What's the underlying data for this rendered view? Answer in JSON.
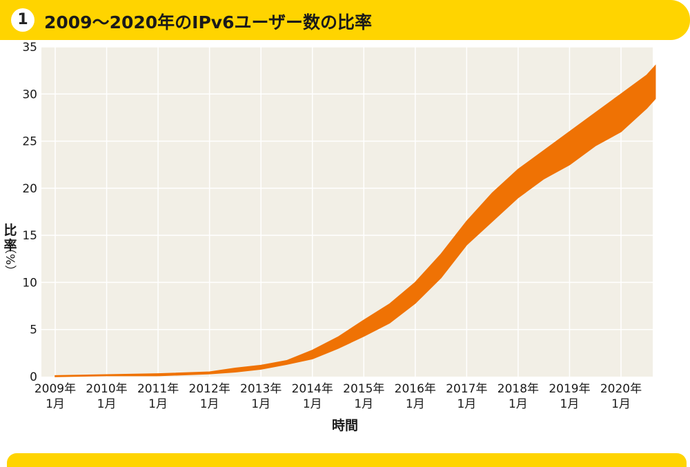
{
  "header": {
    "badge": "1",
    "title": "2009〜2020年のIPv6ユーザー数の比率"
  },
  "colors": {
    "header_bg": "#ffd400",
    "plot_bg": "#f2efe6",
    "series": "#ef7204",
    "grid": "#ffffff"
  },
  "chart_data": {
    "type": "area",
    "title": "2009〜2020年のIPv6ユーザー数の比率",
    "xlabel": "時間",
    "ylabel": [
      "比",
      "率",
      "（%）"
    ],
    "ylim": [
      0,
      35
    ],
    "yticks": [
      "0",
      "5",
      "10",
      "15",
      "20",
      "25",
      "30",
      "35"
    ],
    "xtick_years": [
      "2009年",
      "2010年",
      "2011年",
      "2012年",
      "2013年",
      "2014年",
      "2015年",
      "2016年",
      "2017年",
      "2018年",
      "2019年",
      "2020年"
    ],
    "xtick_months": [
      "1月",
      "1月",
      "1月",
      "1月",
      "1月",
      "1月",
      "1月",
      "1月",
      "1月",
      "1月",
      "1月",
      "1月"
    ],
    "grid": true,
    "series": [
      {
        "values_note_free": true,
        "x": [
          "2009-01",
          "2010-01",
          "2011-01",
          "2012-01",
          "2012-07",
          "2013-01",
          "2013-07",
          "2014-01",
          "2014-07",
          "2015-01",
          "2015-07",
          "2016-01",
          "2016-07",
          "2017-01",
          "2017-07",
          "2018-01",
          "2018-07",
          "2019-01",
          "2019-07",
          "2020-01",
          "2020-07",
          "2020-09"
        ],
        "y_low": [
          0.0,
          0.1,
          0.1,
          0.3,
          0.5,
          0.8,
          1.3,
          1.9,
          3.0,
          4.3,
          5.7,
          7.8,
          10.5,
          14.0,
          16.5,
          19.0,
          21.0,
          22.5,
          24.5,
          26.0,
          28.5,
          29.5
        ],
        "y_high": [
          0.1,
          0.2,
          0.3,
          0.5,
          0.9,
          1.2,
          1.7,
          2.8,
          4.2,
          6.0,
          7.7,
          10.0,
          13.0,
          16.5,
          19.5,
          22.0,
          24.0,
          26.0,
          28.0,
          30.0,
          32.0,
          33.0
        ]
      }
    ]
  }
}
